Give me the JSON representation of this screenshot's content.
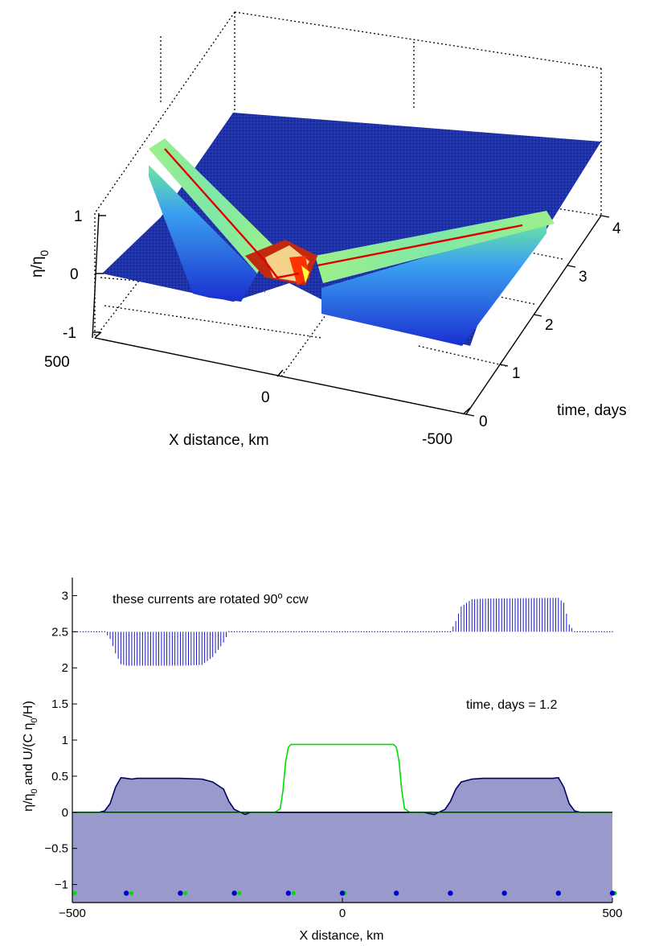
{
  "chart_data": [
    {
      "type": "surface",
      "xlabel": "X distance, km",
      "ylabel": "time, days",
      "zlabel": "η/η0",
      "x_ticks": [
        "500",
        "0",
        "-500"
      ],
      "y_ticks": [
        "0",
        "1",
        "2",
        "3",
        "4"
      ],
      "z_ticks": [
        "1",
        "0",
        "-1"
      ],
      "xlim": [
        -500,
        500
      ],
      "ylim": [
        0,
        4
      ],
      "zlim": [
        -1,
        1
      ],
      "grid": true,
      "colormap": "jet",
      "description_series": [
        {
          "name": "",
          "color": "#e00000",
          "x": [
            0,
            400
          ],
          "t": [
            0,
            4
          ],
          "value": 0.5
        },
        {
          "name": "",
          "color": "#e00000",
          "x": [
            0,
            -400
          ],
          "t": [
            0,
            4
          ],
          "value": 0.5
        }
      ]
    },
    {
      "type": "line",
      "annotation": "these currents are rotated 90",
      "annotation_sup": "o",
      "annotation_tail": " ccw",
      "time_label": "time, days = 1.2",
      "xlabel": "X distance, km",
      "ylabel_parts": [
        "η/η",
        "0",
        "  and  U/(C η",
        "0",
        "/H)"
      ],
      "xlim": [
        -500,
        500
      ],
      "ylim": [
        -1.25,
        3.25
      ],
      "x_ticks": [
        "-500",
        "0",
        "500"
      ],
      "x_tick_values": [
        -500,
        0,
        500
      ],
      "y_ticks": [
        "−1",
        "−0.5",
        "0",
        "0.5",
        "1",
        "1.5",
        "2",
        "2.5",
        "3"
      ],
      "y_tick_values": [
        -1,
        -0.5,
        0,
        0.5,
        1,
        1.5,
        2,
        2.5,
        3
      ],
      "series": [
        {
          "name": "",
          "kind": "filled-area",
          "color": "#000066",
          "fill": "#9999cc",
          "x": [
            -500,
            -450,
            -440,
            -430,
            -420,
            -410,
            -400,
            -390,
            -380,
            -300,
            -260,
            -240,
            -220,
            -210,
            -200,
            -190,
            -180,
            -170,
            -100,
            100,
            150,
            170,
            180,
            190,
            200,
            210,
            220,
            240,
            260,
            380,
            390,
            400,
            410,
            420,
            430,
            440,
            450,
            500
          ],
          "values": [
            0,
            0,
            0.02,
            0.12,
            0.35,
            0.48,
            0.47,
            0.46,
            0.47,
            0.47,
            0.46,
            0.42,
            0.32,
            0.15,
            0.04,
            0.005,
            -0.03,
            0,
            0,
            0,
            0,
            -0.03,
            0.005,
            0.04,
            0.15,
            0.32,
            0.42,
            0.46,
            0.47,
            0.47,
            0.47,
            0.48,
            0.35,
            0.12,
            0.02,
            0,
            0,
            0
          ]
        },
        {
          "name": "",
          "kind": "line",
          "color": "#00dd00",
          "x": [
            -500,
            -125,
            -115,
            -110,
            -105,
            -100,
            -95,
            -90,
            90,
            95,
            100,
            105,
            110,
            115,
            125,
            500
          ],
          "values": [
            0,
            0,
            0.05,
            0.3,
            0.7,
            0.9,
            0.94,
            0.94,
            0.94,
            0.94,
            0.9,
            0.7,
            0.3,
            0.05,
            0,
            0
          ]
        },
        {
          "name": "",
          "kind": "stem",
          "color": "#0000cc",
          "baseline": 2.5,
          "x_start": -500,
          "x_step": 5,
          "segments": [
            {
              "x": [
                -500,
                -440,
                -430,
                -420,
                -410,
                -400,
                -300,
                -260,
                -240,
                -220,
                -210,
                -500
              ],
              "values": [
                2.5,
                2.5,
                2.4,
                2.2,
                2.05,
                2.03,
                2.03,
                2.04,
                2.15,
                2.35,
                2.5,
                2.5
              ]
            },
            {
              "x": [
                190,
                200,
                210,
                220,
                240,
                270,
                400,
                410,
                420,
                430
              ],
              "values": [
                2.5,
                2.5,
                2.65,
                2.85,
                2.95,
                2.96,
                2.97,
                2.9,
                2.6,
                2.5
              ]
            }
          ]
        }
      ],
      "markers": {
        "y": -1.12,
        "blue_x": [
          -400,
          -300,
          -200,
          -100,
          0,
          100,
          200,
          300,
          400,
          500
        ],
        "green_x": [
          -500,
          -395,
          -295,
          -195,
          -95,
          0,
          95,
          195,
          295,
          395,
          500
        ]
      }
    }
  ]
}
